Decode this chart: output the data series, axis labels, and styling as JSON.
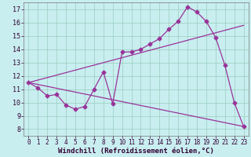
{
  "xlabel": "Windchill (Refroidissement éolien,°C)",
  "bg_color": "#c8eef0",
  "grid_color": "#99ccbb",
  "line_color": "#993399",
  "xlim": [
    -0.5,
    23.5
  ],
  "ylim": [
    7.5,
    17.5
  ],
  "xticks": [
    0,
    1,
    2,
    3,
    4,
    5,
    6,
    7,
    8,
    9,
    10,
    11,
    12,
    13,
    14,
    15,
    16,
    17,
    18,
    19,
    20,
    21,
    22,
    23
  ],
  "yticks": [
    8,
    9,
    10,
    11,
    12,
    13,
    14,
    15,
    16,
    17
  ],
  "line1_x": [
    0,
    1,
    2,
    3,
    4,
    5,
    6,
    7,
    8,
    9,
    10,
    11,
    12,
    13,
    14,
    15,
    16,
    17,
    18,
    19,
    20,
    21,
    22,
    23
  ],
  "line1_y": [
    11.5,
    11.1,
    10.5,
    10.6,
    9.8,
    9.5,
    9.7,
    11.0,
    12.3,
    9.9,
    13.8,
    13.8,
    14.0,
    14.4,
    14.8,
    15.5,
    16.1,
    17.2,
    16.8,
    16.1,
    14.9,
    12.8,
    10.0,
    8.2
  ],
  "line2_x": [
    0,
    23
  ],
  "line2_y": [
    11.5,
    15.8
  ],
  "line3_x": [
    0,
    23
  ],
  "line3_y": [
    11.5,
    8.2
  ],
  "marker_size": 2.5,
  "line_width": 0.9,
  "tick_fontsize": 5.5,
  "xlabel_fontsize": 6.5
}
